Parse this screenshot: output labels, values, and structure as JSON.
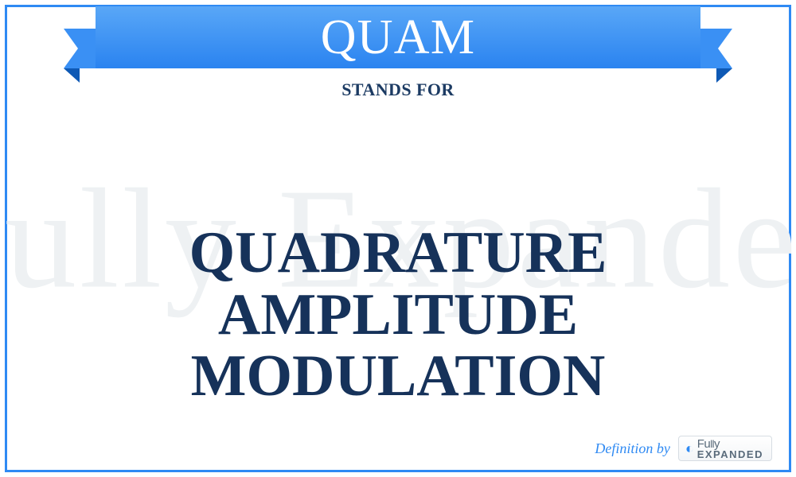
{
  "colors": {
    "frame_border": "#2f8af3",
    "watermark": "#eef1f3",
    "banner_bg_top": "#59a7f7",
    "banner_bg_bottom": "#2a83f0",
    "ribbon_fold": "#3a90f4",
    "ribbon_fold_notch": "#ffffff",
    "ribbon_shadow": "#0e59b5",
    "standsfor_text": "#1c3b63",
    "definition_text": "#16325a",
    "credit_text": "#2f8af3",
    "logo_icon": "#2f8af3",
    "logo_text": "#5a6b7b"
  },
  "banner": {
    "acronym": "QUAM"
  },
  "stands_for_label": "STANDS FOR",
  "definition_text": "QUADRATURE AMPLITUDE MODULATION",
  "watermark_text": "Fully Expanded",
  "credit": {
    "label": "Definition by",
    "logo_line1_a": "Fu",
    "logo_line1_b": "ll",
    "logo_line1_c": "y",
    "logo_line2": "EXPANDED",
    "icon_glyph": "◐"
  },
  "typography": {
    "banner_fontsize": 62,
    "standsfor_fontsize": 22,
    "definition_fontsize": 74,
    "watermark_fontsize": 180,
    "credit_fontsize": 18
  }
}
